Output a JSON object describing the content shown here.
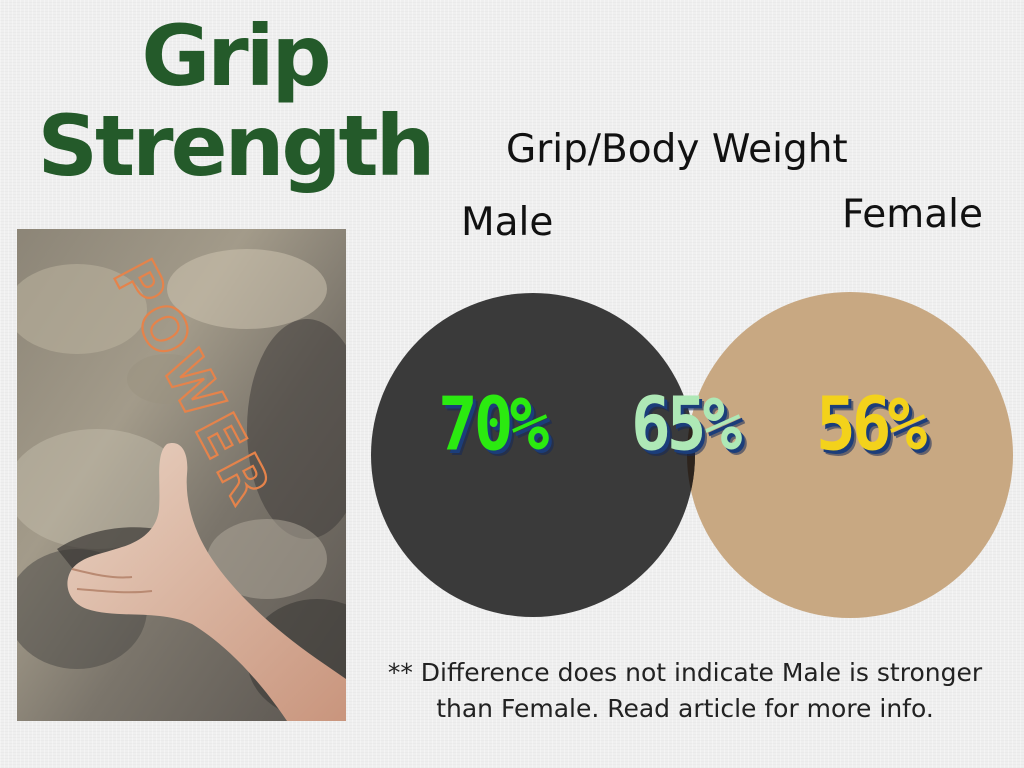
{
  "title": {
    "line1": "Grip",
    "line2": "Strength"
  },
  "photo": {
    "overlay_text": "POWER"
  },
  "venn": {
    "title": "Grip/Body Weight",
    "left_label": "Male",
    "right_label": "Female",
    "left_value": "70%",
    "overlap_value": "65%",
    "right_value": "56%"
  },
  "footnote": {
    "line1": "** Difference does not indicate Male is stronger",
    "line2": "than Female. Read article for more info."
  },
  "colors": {
    "title": "#245a2a",
    "male_circle": "#3a3a3a",
    "female_circle": "#c8a882",
    "overlap": "#2d241d",
    "male_value": "#2bea10",
    "overlap_value": "#aee8b6",
    "female_value": "#f3d21b",
    "power_outline": "#e5834b"
  }
}
